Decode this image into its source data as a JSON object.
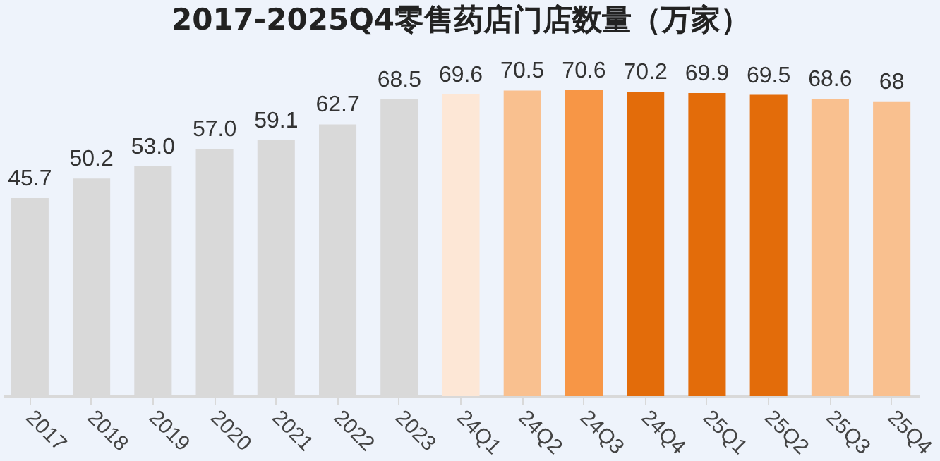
{
  "chart_data": {
    "type": "bar",
    "title": "2017-2025Q4零售药店门店数量（万家）",
    "categories": [
      "2017",
      "2018",
      "2019",
      "2020",
      "2021",
      "2022",
      "2023",
      "24Q1",
      "24Q2",
      "24Q3",
      "24Q4",
      "25Q1",
      "25Q2",
      "25Q3",
      "25Q4"
    ],
    "values": [
      45.7,
      50.2,
      53.0,
      57.0,
      59.1,
      62.7,
      68.5,
      69.6,
      70.5,
      70.6,
      70.2,
      69.9,
      69.5,
      68.6,
      68
    ],
    "value_labels": [
      "45.7",
      "50.2",
      "53.0",
      "57.0",
      "59.1",
      "62.7",
      "68.5",
      "69.6",
      "70.5",
      "70.6",
      "70.2",
      "69.9",
      "69.5",
      "68.6",
      "68"
    ],
    "colors": [
      "#d9d9d9",
      "#d9d9d9",
      "#d9d9d9",
      "#d9d9d9",
      "#d9d9d9",
      "#d9d9d9",
      "#d9d9d9",
      "#fde7d6",
      "#f9c08f",
      "#f79646",
      "#e36c0a",
      "#e36c0a",
      "#e36c0a",
      "#f9c08f",
      "#f9c08f"
    ],
    "tick_labels": "x"
  }
}
